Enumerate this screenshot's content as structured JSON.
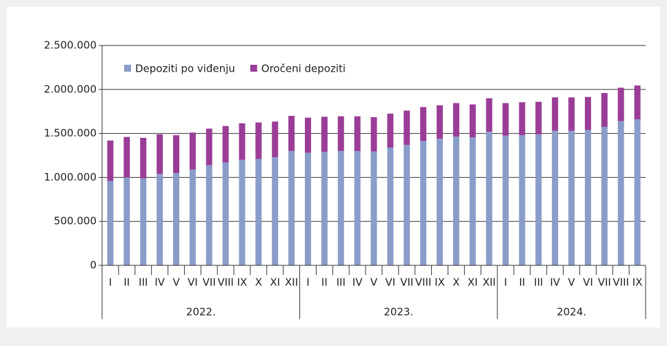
{
  "chart_data": {
    "type": "stacked_bar",
    "year_groups": [
      {
        "name": "2022.",
        "months": [
          "I",
          "II",
          "III",
          "IV",
          "V",
          "VI",
          "VII",
          "VIII",
          "IX",
          "X",
          "XI",
          "XII"
        ]
      },
      {
        "name": "2023.",
        "months": [
          "I",
          "II",
          "III",
          "IV",
          "V",
          "VI",
          "VII",
          "VIII",
          "IX",
          "X",
          "XI",
          "XII"
        ]
      },
      {
        "name": "2024.",
        "months": [
          "I",
          "II",
          "III",
          "IV",
          "V",
          "VI",
          "VII",
          "VIII",
          "IX"
        ]
      }
    ],
    "series": [
      {
        "name": "Depoziti po viđenju",
        "color": "#8a9cc8",
        "values": [
          960000,
          1000000,
          990000,
          1040000,
          1050000,
          1090000,
          1140000,
          1170000,
          1200000,
          1210000,
          1230000,
          1300000,
          1280000,
          1290000,
          1300000,
          1300000,
          1295000,
          1340000,
          1370000,
          1415000,
          1440000,
          1465000,
          1455000,
          1520000,
          1475000,
          1480000,
          1490000,
          1530000,
          1530000,
          1540000,
          1575000,
          1640000,
          1660000
        ]
      },
      {
        "name": "Oročeni depoziti",
        "color": "#9a3d97",
        "values": [
          460000,
          460000,
          460000,
          450000,
          430000,
          420000,
          415000,
          415000,
          415000,
          415000,
          405000,
          400000,
          400000,
          400000,
          395000,
          395000,
          390000,
          385000,
          390000,
          385000,
          380000,
          380000,
          375000,
          380000,
          370000,
          375000,
          370000,
          380000,
          380000,
          375000,
          385000,
          380000,
          385000
        ]
      }
    ],
    "ylim": [
      0,
      2500000
    ],
    "yticks": [
      0,
      {
        "value": 500000,
        "label": "500.000"
      },
      {
        "value": 1000000,
        "label": "1.000.000"
      },
      {
        "value": 1500000,
        "label": "1.500.000"
      },
      {
        "value": 2000000,
        "label": "2.000.000"
      },
      {
        "value": 2500000,
        "label": "2.500.000"
      }
    ],
    "grid": true,
    "legend": "top-left"
  }
}
